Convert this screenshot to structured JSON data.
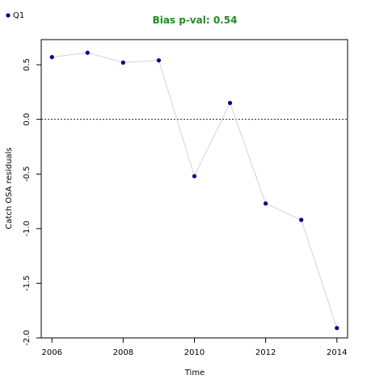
{
  "chart_data": {
    "type": "line",
    "title": "Bias p-val: 0.54",
    "title_color": "#228B22",
    "xlabel": "Time",
    "ylabel": "Catch OSA residuals",
    "xlim": [
      2005.7,
      2014.3
    ],
    "ylim": [
      -2.0,
      0.73
    ],
    "x_ticks": [
      2006,
      2008,
      2010,
      2012,
      2014
    ],
    "y_ticks": [
      -2.0,
      -1.5,
      -1.0,
      -0.5,
      0.0,
      0.5
    ],
    "y_tick_labels": [
      "-2.0",
      "-1.5",
      "-1.0",
      "-0.5",
      "0.0",
      "0.5"
    ],
    "reference_line": 0.0,
    "line_color": "#d3d3d3",
    "point_color": "#00008B",
    "series": [
      {
        "name": "Q1",
        "x": [
          2006,
          2007,
          2008,
          2009,
          2010,
          2011,
          2012,
          2013,
          2014
        ],
        "y": [
          0.57,
          0.61,
          0.52,
          0.54,
          -0.52,
          0.15,
          -0.77,
          -0.92,
          -1.91
        ]
      }
    ],
    "legend_position": "top-left"
  }
}
